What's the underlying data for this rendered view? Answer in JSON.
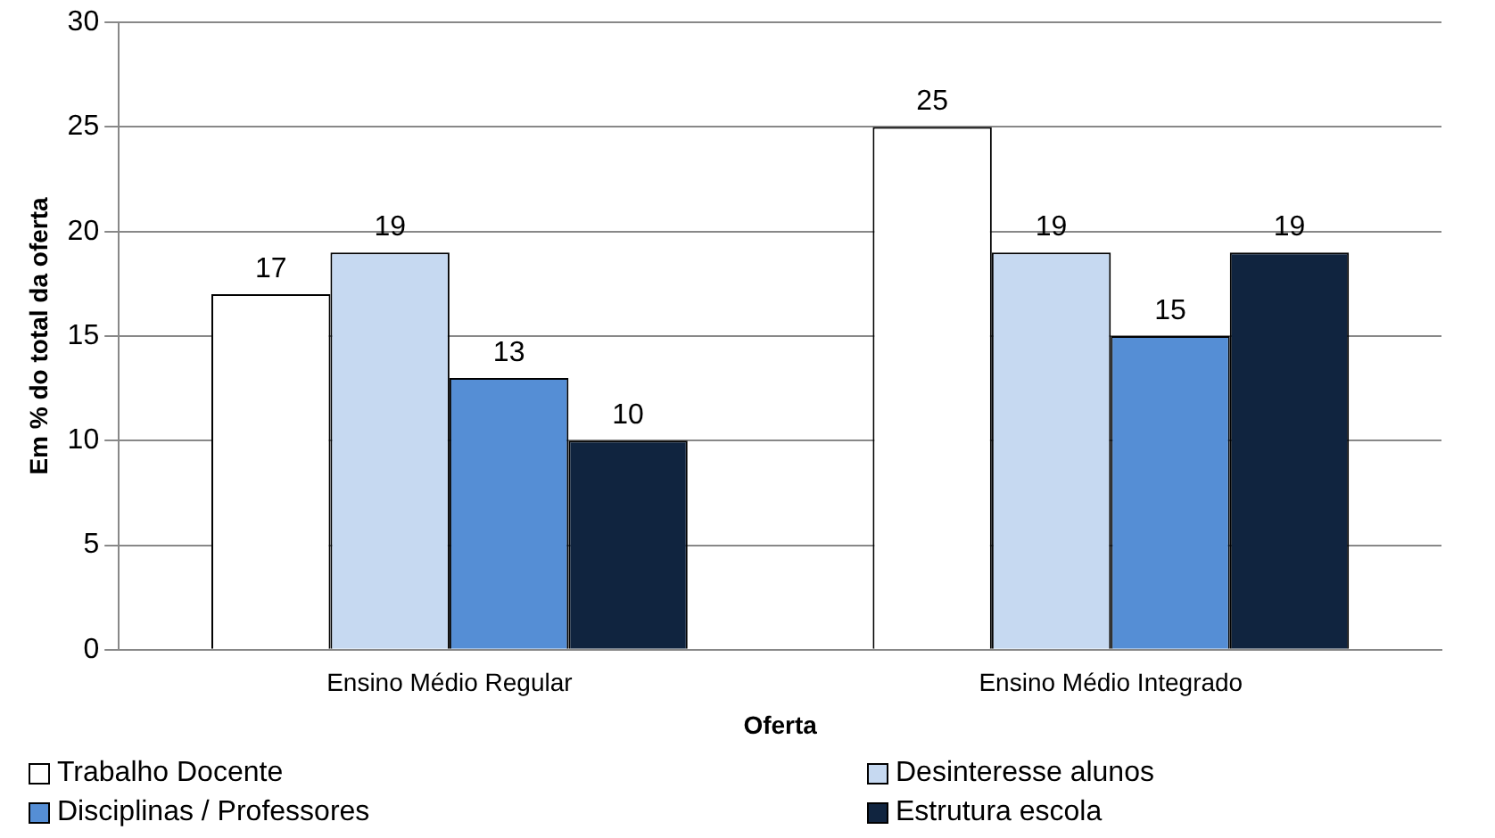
{
  "chart_data": {
    "type": "bar",
    "xlabel": "Oferta",
    "ylabel": "Em % do total da oferta",
    "categories": [
      "Ensino Médio Regular",
      "Ensino Médio Integrado"
    ],
    "series": [
      {
        "name": "Trabalho Docente",
        "color": "#ffffff",
        "values": [
          17,
          25
        ]
      },
      {
        "name": "Desinteresse alunos",
        "color": "#c6d9f1",
        "values": [
          19,
          19
        ]
      },
      {
        "name": "Disciplinas / Professores",
        "color": "#558ed5",
        "values": [
          13,
          15
        ]
      },
      {
        "name": "Estrutura escola",
        "color": "#10243f",
        "values": [
          10,
          19
        ]
      }
    ],
    "ylim": [
      0,
      30
    ],
    "yticks": [
      0,
      5,
      10,
      15,
      20,
      25,
      30
    ],
    "grid": "y",
    "legend": "bottom",
    "data_labels": true
  }
}
